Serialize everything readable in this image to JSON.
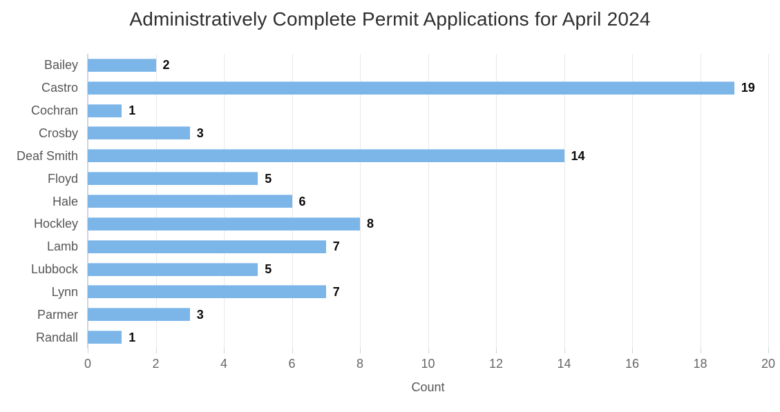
{
  "chart_data": {
    "type": "bar",
    "orientation": "horizontal",
    "title": "Administratively Complete Permit Applications for April 2024",
    "categories": [
      "Bailey",
      "Castro",
      "Cochran",
      "Crosby",
      "Deaf Smith",
      "Floyd",
      "Hale",
      "Hockley",
      "Lamb",
      "Lubbock",
      "Lynn",
      "Parmer",
      "Randall"
    ],
    "values": [
      2,
      19,
      1,
      3,
      14,
      5,
      6,
      8,
      7,
      5,
      7,
      3,
      1
    ],
    "data_labels": [
      2,
      19,
      1,
      3,
      14,
      5,
      6,
      8,
      7,
      5,
      7,
      3,
      1
    ],
    "xlabel": "Count",
    "ylabel": "",
    "xlim": [
      0,
      20
    ],
    "xticks": [
      0,
      2,
      4,
      6,
      8,
      10,
      12,
      14,
      16,
      18,
      20
    ],
    "grid": true,
    "legend": "none",
    "colors": {
      "bar": "#7cb5e8",
      "grid": "#e8e8e8",
      "axis": "#ccd7e2",
      "tick": "#c8d3de",
      "title": "#2e2e2e",
      "label": "#565656",
      "ticklabel": "#666666",
      "value": "#0a0a0a",
      "bg": "#ffffff"
    }
  }
}
